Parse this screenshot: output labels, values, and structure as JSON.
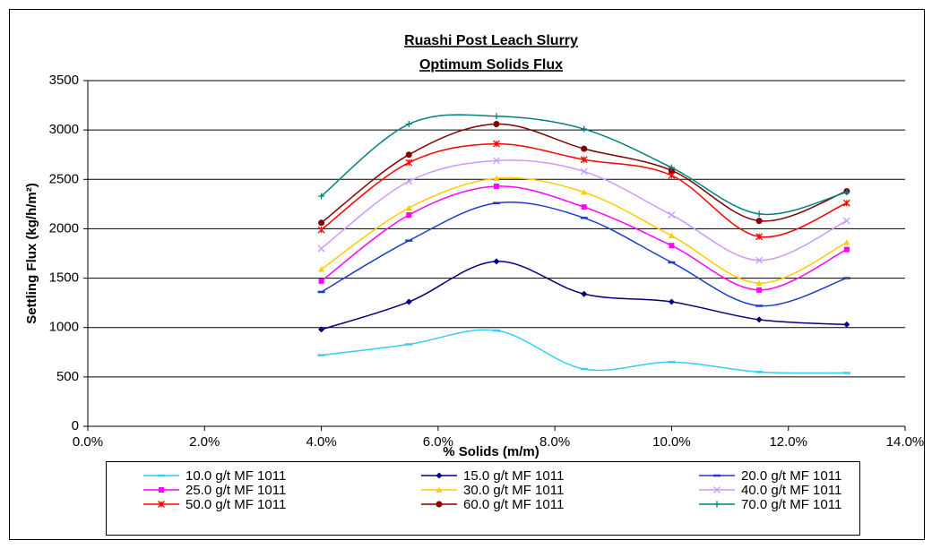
{
  "chart_data": {
    "type": "line",
    "title": [
      "Ruashi Post Leach Slurry",
      "Optimum Solids Flux"
    ],
    "x_label": "% Solids (m/m)",
    "y_label": "Settling Flux (kg/h/m²)",
    "x": [
      4,
      5.5,
      7,
      8.5,
      10,
      11.5,
      13
    ],
    "xlim": [
      0,
      14
    ],
    "xticks": [
      {
        "value": 0,
        "label": "0.0%"
      },
      {
        "value": 2,
        "label": "2.0%"
      },
      {
        "value": 4,
        "label": "4.0%"
      },
      {
        "value": 6,
        "label": "6.0%"
      },
      {
        "value": 8,
        "label": "8.0%"
      },
      {
        "value": 10,
        "label": "10.0%"
      },
      {
        "value": 12,
        "label": "12.0%"
      },
      {
        "value": 14,
        "label": "14.0%"
      }
    ],
    "ylim": [
      0,
      3500
    ],
    "yticks": [
      0,
      500,
      1000,
      1500,
      2000,
      2500,
      3000,
      3500
    ],
    "grid": true,
    "smooth": true,
    "legend": "bottom",
    "series": [
      {
        "name": "10.0 g/t MF 1011",
        "color": "#33ccff",
        "marker": "dash",
        "values": [
          720,
          830,
          970,
          580,
          650,
          550,
          540
        ]
      },
      {
        "name": "15.0 g/t MF 1011",
        "color": "#000080",
        "marker": "diamond",
        "values": [
          980,
          1260,
          1670,
          1340,
          1260,
          1080,
          1030
        ]
      },
      {
        "name": "20.0 g/t MF 1011",
        "color": "#1a3cc8",
        "marker": "dash",
        "values": [
          1360,
          1880,
          2260,
          2110,
          1660,
          1220,
          1500
        ]
      },
      {
        "name": "25.0 g/t MF 1011",
        "color": "#ff00ff",
        "marker": "square",
        "values": [
          1470,
          2140,
          2430,
          2220,
          1830,
          1380,
          1790
        ]
      },
      {
        "name": "30.0 g/t MF 1011",
        "color": "#ffcc00",
        "marker": "triangle",
        "values": [
          1590,
          2210,
          2510,
          2370,
          1930,
          1450,
          1860
        ]
      },
      {
        "name": "40.0 g/t MF 1011",
        "color": "#cc99ff",
        "marker": "x",
        "values": [
          1800,
          2480,
          2690,
          2580,
          2140,
          1680,
          2080
        ]
      },
      {
        "name": "50.0 g/t MF 1011",
        "color": "#ff0000",
        "marker": "star",
        "values": [
          1990,
          2670,
          2860,
          2700,
          2540,
          1920,
          2260
        ]
      },
      {
        "name": "60.0 g/t MF 1011",
        "color": "#800000",
        "marker": "circle",
        "values": [
          2060,
          2750,
          3060,
          2810,
          2590,
          2080,
          2380
        ]
      },
      {
        "name": "70.0 g/t MF 1011",
        "color": "#008080",
        "marker": "plus",
        "values": [
          2330,
          3060,
          3140,
          3010,
          2620,
          2150,
          2370
        ]
      }
    ]
  }
}
